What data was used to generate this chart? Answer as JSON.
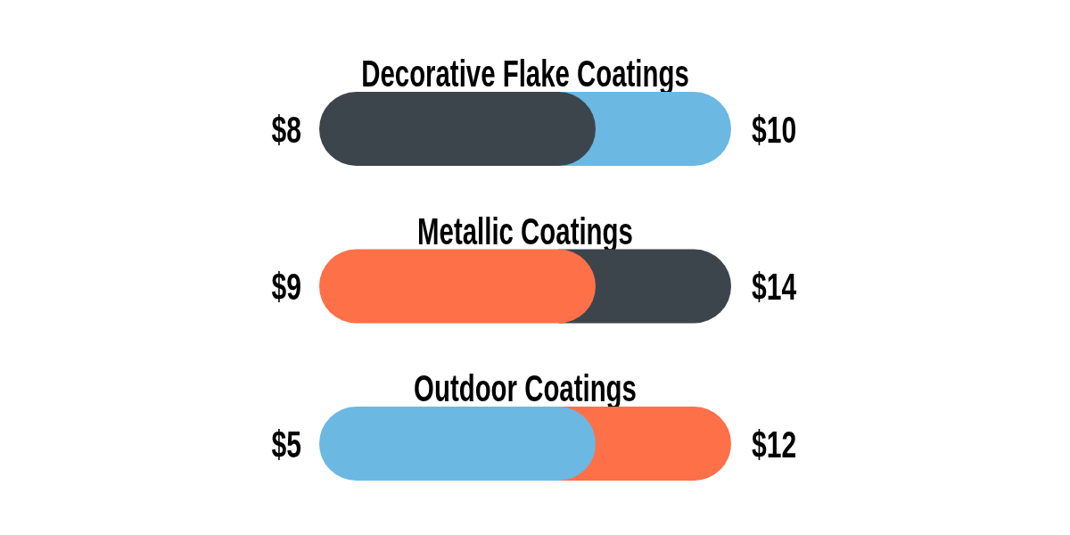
{
  "chart_data": {
    "type": "other",
    "categories": [
      "Decorative Flake Coatings",
      "Metallic Coatings",
      "Outdoor Coatings"
    ],
    "series": [
      {
        "values": [
          8,
          9,
          5
        ],
        "value_labels": [
          "$8",
          "$9",
          "$5"
        ],
        "colors": [
          "#3d454c",
          "#fd7048",
          "#6bb8e2"
        ]
      },
      {
        "values": [
          10,
          14,
          12
        ],
        "value_labels": [
          "$10",
          "$14",
          "$12"
        ],
        "colors": [
          "#6bb8e2",
          "#3d454c",
          "#fd7048"
        ]
      }
    ]
  }
}
